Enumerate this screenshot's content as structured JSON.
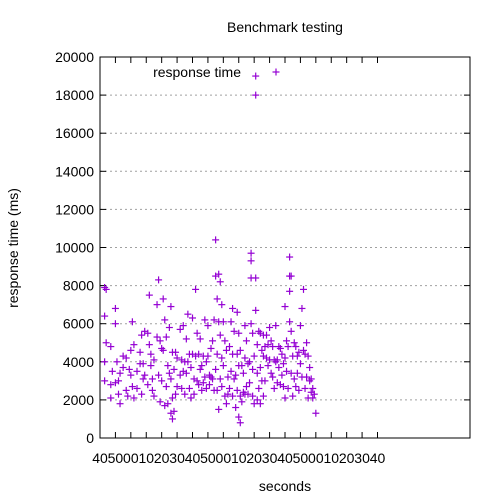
{
  "chart_data": {
    "type": "scatter",
    "title": "Benchmark testing",
    "xlabel": "seconds",
    "ylabel": "response time (ms)",
    "xlim": [
      0,
      240
    ],
    "ylim": [
      0,
      20000
    ],
    "x_ticks": [
      {
        "value": 0,
        "label": "40"
      },
      {
        "value": 10,
        "label": "50"
      },
      {
        "value": 20,
        "label": "00"
      },
      {
        "value": 30,
        "label": "10"
      },
      {
        "value": 40,
        "label": "20"
      },
      {
        "value": 50,
        "label": "30"
      },
      {
        "value": 60,
        "label": "40"
      },
      {
        "value": 70,
        "label": "50"
      },
      {
        "value": 80,
        "label": "00"
      },
      {
        "value": 90,
        "label": "10"
      },
      {
        "value": 100,
        "label": "20"
      },
      {
        "value": 110,
        "label": "30"
      },
      {
        "value": 120,
        "label": "40"
      },
      {
        "value": 130,
        "label": "50"
      },
      {
        "value": 140,
        "label": "00"
      },
      {
        "value": 150,
        "label": "10"
      },
      {
        "value": 160,
        "label": "20"
      },
      {
        "value": 170,
        "label": "30"
      },
      {
        "value": 180,
        "label": "40"
      }
    ],
    "y_ticks": [
      {
        "value": 0,
        "label": "0"
      },
      {
        "value": 2000,
        "label": "2000"
      },
      {
        "value": 4000,
        "label": "4000"
      },
      {
        "value": 6000,
        "label": "6000"
      },
      {
        "value": 8000,
        "label": "8000"
      },
      {
        "value": 10000,
        "label": "10000"
      },
      {
        "value": 12000,
        "label": "12000"
      },
      {
        "value": 14000,
        "label": "14000"
      },
      {
        "value": 16000,
        "label": "16000"
      },
      {
        "value": 18000,
        "label": "18000"
      },
      {
        "value": 20000,
        "label": "20000"
      }
    ],
    "grid": "horizontal dotted",
    "legend_position": "top-left",
    "series": [
      {
        "name": "response time",
        "color": "#9400d3",
        "marker": "plus",
        "points": [
          [
            3,
            7900
          ],
          [
            3,
            6400
          ],
          [
            3,
            4000
          ],
          [
            3,
            3000
          ],
          [
            4,
            7800
          ],
          [
            4,
            5000
          ],
          [
            7,
            4800
          ],
          [
            7,
            2800
          ],
          [
            7,
            2100
          ],
          [
            8,
            3500
          ],
          [
            10,
            6800
          ],
          [
            10,
            6000
          ],
          [
            10,
            2900
          ],
          [
            11,
            4000
          ],
          [
            12,
            3000
          ],
          [
            12,
            2300
          ],
          [
            13,
            3400
          ],
          [
            13,
            1800
          ],
          [
            15,
            4300
          ],
          [
            15,
            3700
          ],
          [
            17,
            4200
          ],
          [
            17,
            2500
          ],
          [
            18,
            2200
          ],
          [
            19,
            3600
          ],
          [
            20,
            4600
          ],
          [
            20,
            3300
          ],
          [
            21,
            6100
          ],
          [
            21,
            2700
          ],
          [
            22,
            4900
          ],
          [
            22,
            2100
          ],
          [
            24,
            3500
          ],
          [
            24,
            2600
          ],
          [
            26,
            4500
          ],
          [
            26,
            3900
          ],
          [
            27,
            5400
          ],
          [
            27,
            2300
          ],
          [
            28,
            3900
          ],
          [
            28,
            3100
          ],
          [
            29,
            5600
          ],
          [
            29,
            3300
          ],
          [
            31,
            5500
          ],
          [
            31,
            2800
          ],
          [
            32,
            7500
          ],
          [
            32,
            4900
          ],
          [
            33,
            4400
          ],
          [
            33,
            3800
          ],
          [
            34,
            3100
          ],
          [
            34,
            2500
          ],
          [
            35,
            4100
          ],
          [
            35,
            2200
          ],
          [
            37,
            7000
          ],
          [
            37,
            5300
          ],
          [
            38,
            8300
          ],
          [
            38,
            3300
          ],
          [
            39,
            5100
          ],
          [
            39,
            1900
          ],
          [
            40,
            4700
          ],
          [
            40,
            3000
          ],
          [
            41,
            7300
          ],
          [
            41,
            4600
          ],
          [
            42,
            6200
          ],
          [
            42,
            1700
          ],
          [
            43,
            5300
          ],
          [
            43,
            2700
          ],
          [
            44,
            3800
          ],
          [
            44,
            1800
          ],
          [
            45,
            5800
          ],
          [
            45,
            3400
          ],
          [
            46,
            6900
          ],
          [
            46,
            3100
          ],
          [
            46,
            1300
          ],
          [
            47,
            4500
          ],
          [
            47,
            2100
          ],
          [
            47,
            1000
          ],
          [
            48,
            3600
          ],
          [
            48,
            1400
          ],
          [
            49,
            4500
          ],
          [
            49,
            2300
          ],
          [
            50,
            4200
          ],
          [
            50,
            2700
          ],
          [
            52,
            5700
          ],
          [
            52,
            3300
          ],
          [
            53,
            4100
          ],
          [
            53,
            2600
          ],
          [
            54,
            5900
          ],
          [
            54,
            3500
          ],
          [
            55,
            4000
          ],
          [
            55,
            2300
          ],
          [
            56,
            5200
          ],
          [
            56,
            3400
          ],
          [
            57,
            6500
          ],
          [
            57,
            4000
          ],
          [
            58,
            4400
          ],
          [
            58,
            2600
          ],
          [
            59,
            3700
          ],
          [
            59,
            2100
          ],
          [
            60,
            6300
          ],
          [
            60,
            4400
          ],
          [
            61,
            3100
          ],
          [
            61,
            2300
          ],
          [
            62,
            7800
          ],
          [
            62,
            4300
          ],
          [
            63,
            5500
          ],
          [
            63,
            3000
          ],
          [
            64,
            4400
          ],
          [
            64,
            2800
          ],
          [
            65,
            5200
          ],
          [
            65,
            3600
          ],
          [
            66,
            3800
          ],
          [
            66,
            2500
          ],
          [
            67,
            4300
          ],
          [
            67,
            2900
          ],
          [
            68,
            6200
          ],
          [
            68,
            3200
          ],
          [
            69,
            4000
          ],
          [
            69,
            2600
          ],
          [
            70,
            5900
          ],
          [
            70,
            4300
          ],
          [
            71,
            3300
          ],
          [
            71,
            2800
          ],
          [
            72,
            4700
          ],
          [
            72,
            3200
          ],
          [
            73,
            5100
          ],
          [
            73,
            3100
          ],
          [
            74,
            6200
          ],
          [
            74,
            2500
          ],
          [
            75,
            10400
          ],
          [
            75,
            8500
          ],
          [
            75,
            3600
          ],
          [
            76,
            7300
          ],
          [
            76,
            4400
          ],
          [
            76,
            2500
          ],
          [
            77,
            8600
          ],
          [
            77,
            6100
          ],
          [
            77,
            1500
          ],
          [
            78,
            8200
          ],
          [
            78,
            5400
          ],
          [
            78,
            3100
          ],
          [
            79,
            7000
          ],
          [
            79,
            4200
          ],
          [
            79,
            2700
          ],
          [
            80,
            6100
          ],
          [
            80,
            3800
          ],
          [
            81,
            5100
          ],
          [
            81,
            2200
          ],
          [
            82,
            4600
          ],
          [
            82,
            1800
          ],
          [
            83,
            3200
          ],
          [
            83,
            2300
          ],
          [
            84,
            4800
          ],
          [
            84,
            2600
          ],
          [
            85,
            6100
          ],
          [
            85,
            3500
          ],
          [
            86,
            6800
          ],
          [
            86,
            4400
          ],
          [
            86,
            2200
          ],
          [
            87,
            5600
          ],
          [
            87,
            3100
          ],
          [
            88,
            3300
          ],
          [
            88,
            1600
          ],
          [
            89,
            6600
          ],
          [
            89,
            4400
          ],
          [
            89,
            2500
          ],
          [
            90,
            5500
          ],
          [
            90,
            3800
          ],
          [
            90,
            1100
          ],
          [
            91,
            4600
          ],
          [
            91,
            2200
          ],
          [
            91,
            800
          ],
          [
            92,
            3800
          ],
          [
            92,
            1900
          ],
          [
            93,
            3400
          ],
          [
            93,
            2400
          ],
          [
            94,
            5900
          ],
          [
            94,
            4200
          ],
          [
            94,
            2300
          ],
          [
            95,
            5100
          ],
          [
            95,
            2700
          ],
          [
            96,
            3900
          ],
          [
            96,
            2300
          ],
          [
            97,
            4000
          ],
          [
            97,
            2900
          ],
          [
            98,
            9700
          ],
          [
            98,
            9300
          ],
          [
            98,
            8400
          ],
          [
            98,
            6000
          ],
          [
            99,
            5500
          ],
          [
            99,
            3600
          ],
          [
            99,
            2200
          ],
          [
            100,
            4300
          ],
          [
            100,
            1800
          ],
          [
            101,
            19000
          ],
          [
            101,
            18000
          ],
          [
            101,
            8400
          ],
          [
            101,
            6700
          ],
          [
            102,
            4900
          ],
          [
            102,
            3400
          ],
          [
            102,
            2000
          ],
          [
            103,
            5600
          ],
          [
            103,
            2600
          ],
          [
            104,
            5500
          ],
          [
            104,
            3700
          ],
          [
            104,
            1800
          ],
          [
            105,
            4600
          ],
          [
            105,
            3000
          ],
          [
            106,
            5400
          ],
          [
            106,
            4300
          ],
          [
            106,
            2200
          ],
          [
            107,
            4800
          ],
          [
            107,
            3000
          ],
          [
            108,
            5400
          ],
          [
            108,
            4200
          ],
          [
            109,
            4900
          ],
          [
            109,
            3800
          ],
          [
            110,
            5800
          ],
          [
            110,
            4100
          ],
          [
            111,
            5100
          ],
          [
            111,
            3400
          ],
          [
            112,
            4800
          ],
          [
            112,
            3200
          ],
          [
            113,
            4100
          ],
          [
            113,
            2600
          ],
          [
            114,
            5900
          ],
          [
            114,
            4000
          ],
          [
            115,
            4100
          ],
          [
            115,
            2900
          ],
          [
            116,
            4800
          ],
          [
            116,
            3700
          ],
          [
            117,
            4700
          ],
          [
            117,
            2800
          ],
          [
            118,
            4400
          ],
          [
            118,
            3300
          ],
          [
            119,
            3900
          ],
          [
            119,
            2700
          ],
          [
            120,
            6900
          ],
          [
            120,
            4200
          ],
          [
            120,
            2100
          ],
          [
            121,
            5100
          ],
          [
            121,
            3500
          ],
          [
            122,
            4800
          ],
          [
            122,
            2600
          ],
          [
            123,
            9500
          ],
          [
            123,
            8500
          ],
          [
            123,
            7700
          ],
          [
            123,
            6100
          ],
          [
            124,
            8500
          ],
          [
            124,
            5600
          ],
          [
            124,
            3400
          ],
          [
            125,
            4300
          ],
          [
            125,
            2200
          ],
          [
            126,
            5000
          ],
          [
            126,
            3100
          ],
          [
            127,
            4800
          ],
          [
            127,
            2700
          ],
          [
            128,
            4300
          ],
          [
            128,
            3400
          ],
          [
            129,
            4500
          ],
          [
            129,
            2500
          ],
          [
            130,
            5900
          ],
          [
            130,
            3900
          ],
          [
            131,
            6800
          ],
          [
            131,
            3200
          ],
          [
            132,
            7800
          ],
          [
            132,
            4600
          ],
          [
            133,
            4400
          ],
          [
            133,
            2600
          ],
          [
            134,
            5000
          ],
          [
            134,
            3200
          ],
          [
            135,
            4300
          ],
          [
            135,
            2100
          ],
          [
            136,
            3700
          ],
          [
            136,
            3000
          ],
          [
            137,
            3100
          ],
          [
            137,
            2400
          ],
          [
            138,
            2600
          ],
          [
            138,
            2100
          ],
          [
            139,
            2300
          ],
          [
            140,
            1300
          ]
        ]
      }
    ]
  }
}
